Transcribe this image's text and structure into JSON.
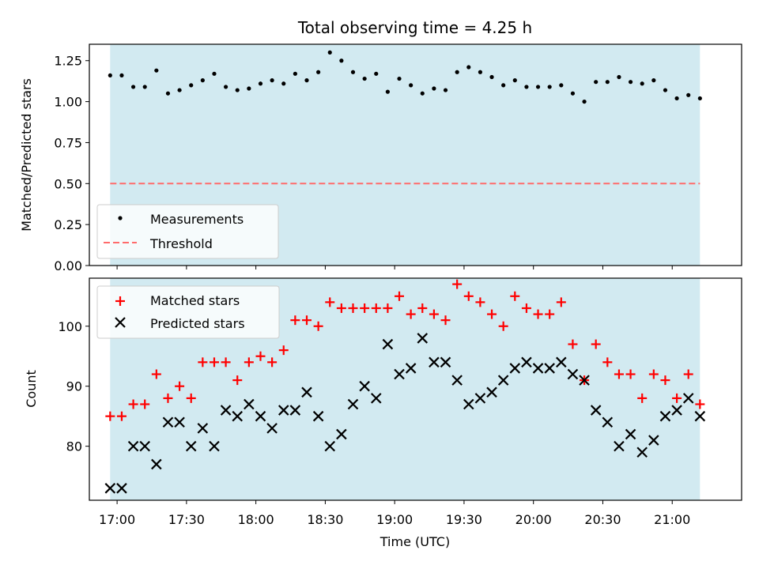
{
  "chart_data": [
    {
      "type": "scatter",
      "title": "Total observing time = 4.25 h",
      "ylabel": "Matched/Predicted stars",
      "xlabel": "",
      "ylim": [
        0,
        1.35
      ],
      "yticks": [
        "0.00",
        "0.25",
        "0.50",
        "0.75",
        "1.00",
        "1.25"
      ],
      "xlim": [
        "16:48",
        "21:30"
      ],
      "observing_window": [
        "16:57",
        "21:12"
      ],
      "observing_window_color": "#add8e6",
      "grid": false,
      "legend_position": "lower-left",
      "series": [
        {
          "name": "Measurements",
          "marker": "dot",
          "color": "#000000",
          "x": [
            "16:57",
            "17:02",
            "17:07",
            "17:12",
            "17:17",
            "17:22",
            "17:27",
            "17:32",
            "17:37",
            "17:42",
            "17:47",
            "17:52",
            "17:57",
            "18:02",
            "18:07",
            "18:12",
            "18:17",
            "18:22",
            "18:27",
            "18:32",
            "18:37",
            "18:42",
            "18:47",
            "18:52",
            "18:57",
            "19:02",
            "19:07",
            "19:12",
            "19:17",
            "19:22",
            "19:27",
            "19:32",
            "19:37",
            "19:42",
            "19:47",
            "19:52",
            "19:57",
            "20:02",
            "20:07",
            "20:12",
            "20:17",
            "20:22",
            "20:27",
            "20:32",
            "20:37",
            "20:42",
            "20:47",
            "20:52",
            "20:57",
            "21:02",
            "21:07",
            "21:12"
          ],
          "y": [
            1.16,
            1.16,
            1.09,
            1.09,
            1.19,
            1.05,
            1.07,
            1.1,
            1.13,
            1.17,
            1.09,
            1.07,
            1.08,
            1.11,
            1.13,
            1.11,
            1.17,
            1.13,
            1.18,
            1.3,
            1.25,
            1.18,
            1.14,
            1.17,
            1.06,
            1.14,
            1.1,
            1.05,
            1.08,
            1.07,
            1.18,
            1.21,
            1.18,
            1.15,
            1.1,
            1.13,
            1.09,
            1.09,
            1.09,
            1.1,
            1.05,
            1.0,
            1.12,
            1.12,
            1.15,
            1.12,
            1.11,
            1.13,
            1.07,
            1.02,
            1.04,
            1.02
          ]
        },
        {
          "name": "Threshold",
          "style": "dashed",
          "color": "#ff6b6b",
          "x": [
            "16:57",
            "21:12"
          ],
          "y": [
            0.5,
            0.5
          ]
        }
      ]
    },
    {
      "type": "scatter",
      "title": "",
      "ylabel": "Count",
      "xlabel": "Time (UTC)",
      "ylim": [
        71,
        108
      ],
      "yticks": [
        "80",
        "90",
        "100"
      ],
      "xlim": [
        "16:48",
        "21:30"
      ],
      "xticks": [
        "17:00",
        "17:30",
        "18:00",
        "18:30",
        "19:00",
        "19:30",
        "20:00",
        "20:30",
        "21:00"
      ],
      "observing_window": [
        "16:57",
        "21:12"
      ],
      "observing_window_color": "#add8e6",
      "grid": false,
      "legend_position": "upper-left",
      "series": [
        {
          "name": "Matched stars",
          "marker": "plus",
          "color": "#ff0000",
          "x": [
            "16:57",
            "17:02",
            "17:07",
            "17:12",
            "17:17",
            "17:22",
            "17:27",
            "17:32",
            "17:37",
            "17:42",
            "17:47",
            "17:52",
            "17:57",
            "18:02",
            "18:07",
            "18:12",
            "18:17",
            "18:22",
            "18:27",
            "18:32",
            "18:37",
            "18:42",
            "18:47",
            "18:52",
            "18:57",
            "19:02",
            "19:07",
            "19:12",
            "19:17",
            "19:22",
            "19:27",
            "19:32",
            "19:37",
            "19:42",
            "19:47",
            "19:52",
            "19:57",
            "20:02",
            "20:07",
            "20:12",
            "20:17",
            "20:22",
            "20:27",
            "20:32",
            "20:37",
            "20:42",
            "20:47",
            "20:52",
            "20:57",
            "21:02",
            "21:07",
            "21:12"
          ],
          "y": [
            85,
            85,
            87,
            87,
            92,
            88,
            90,
            88,
            94,
            94,
            94,
            91,
            94,
            95,
            94,
            96,
            101,
            101,
            100,
            104,
            103,
            103,
            103,
            103,
            103,
            105,
            102,
            103,
            102,
            101,
            107,
            105,
            104,
            102,
            100,
            105,
            103,
            102,
            102,
            104,
            97,
            91,
            97,
            94,
            92,
            92,
            88,
            92,
            91,
            88,
            92,
            87
          ]
        },
        {
          "name": "Predicted stars",
          "marker": "x",
          "color": "#000000",
          "x": [
            "16:57",
            "17:02",
            "17:07",
            "17:12",
            "17:17",
            "17:22",
            "17:27",
            "17:32",
            "17:37",
            "17:42",
            "17:47",
            "17:52",
            "17:57",
            "18:02",
            "18:07",
            "18:12",
            "18:17",
            "18:22",
            "18:27",
            "18:32",
            "18:37",
            "18:42",
            "18:47",
            "18:52",
            "18:57",
            "19:02",
            "19:07",
            "19:12",
            "19:17",
            "19:22",
            "19:27",
            "19:32",
            "19:37",
            "19:42",
            "19:47",
            "19:52",
            "19:57",
            "20:02",
            "20:07",
            "20:12",
            "20:17",
            "20:22",
            "20:27",
            "20:32",
            "20:37",
            "20:42",
            "20:47",
            "20:52",
            "20:57",
            "21:02",
            "21:07",
            "21:12"
          ],
          "y": [
            73,
            73,
            80,
            80,
            77,
            84,
            84,
            80,
            83,
            80,
            86,
            85,
            87,
            85,
            83,
            86,
            86,
            89,
            85,
            80,
            82,
            87,
            90,
            88,
            97,
            92,
            93,
            98,
            94,
            94,
            91,
            87,
            88,
            89,
            91,
            93,
            94,
            93,
            93,
            94,
            92,
            91,
            86,
            84,
            80,
            82,
            79,
            81,
            85,
            86,
            88,
            85
          ]
        }
      ]
    }
  ]
}
